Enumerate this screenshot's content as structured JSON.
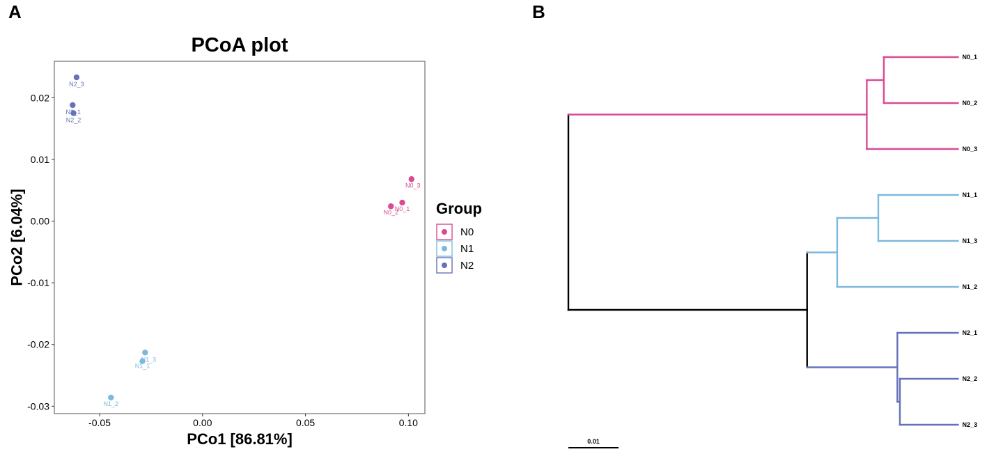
{
  "panels": {
    "a_letter": "A",
    "b_letter": "B"
  },
  "colors": {
    "N0": "#d94a94",
    "N1": "#7db8df",
    "N2": "#6572b8",
    "root": "#000000"
  },
  "chart_data": [
    {
      "type": "scatter",
      "title": "PCoA plot",
      "xlabel": "PCo1 [86.81%]",
      "ylabel": "PCo2 [6.04%]",
      "xlim": [
        -0.072,
        0.108
      ],
      "ylim": [
        -0.0312,
        0.0259
      ],
      "x_ticks": [
        -0.05,
        0.0,
        0.05,
        0.1
      ],
      "x_tick_labels": [
        "-0.05",
        "0.00",
        "0.05",
        "0.10"
      ],
      "y_ticks": [
        -0.03,
        -0.02,
        -0.01,
        0.0,
        0.01,
        0.02
      ],
      "y_tick_labels": [
        "-0.03",
        "-0.02",
        "-0.01",
        "0.00",
        "0.01",
        "0.02"
      ],
      "grid": false,
      "legend": {
        "title": "Group",
        "placement": "right",
        "entries": [
          "N0",
          "N1",
          "N2"
        ]
      },
      "series": [
        {
          "name": "N0",
          "points": [
            {
              "label": "N0_1",
              "x": 0.097,
              "y": 0.003
            },
            {
              "label": "N0_2",
              "x": 0.0915,
              "y": 0.0024
            },
            {
              "label": "N0_3",
              "x": 0.1015,
              "y": 0.0068
            }
          ]
        },
        {
          "name": "N1",
          "points": [
            {
              "label": "N1_1",
              "x": -0.0292,
              "y": -0.0227
            },
            {
              "label": "N1_2",
              "x": -0.0445,
              "y": -0.0286
            },
            {
              "label": "N1_3",
              "x": -0.0279,
              "y": -0.0213
            }
          ]
        },
        {
          "name": "N2",
          "points": [
            {
              "label": "N2_1",
              "x": -0.0631,
              "y": 0.0188
            },
            {
              "label": "N2_2",
              "x": -0.0627,
              "y": 0.0175
            },
            {
              "label": "N2_3",
              "x": -0.0612,
              "y": 0.0233
            }
          ]
        }
      ]
    },
    {
      "type": "dendrogram",
      "scale_bar": {
        "value": 0.01,
        "label": "0.01"
      },
      "leaves": [
        "N0_1",
        "N0_2",
        "N0_3",
        "N1_1",
        "N1_3",
        "N1_2",
        "N2_1",
        "N2_2",
        "N2_3"
      ],
      "leaf_groups": [
        "N0",
        "N0",
        "N0",
        "N1",
        "N1",
        "N1",
        "N2",
        "N2",
        "N2"
      ],
      "nodes": [
        {
          "id": "root",
          "height": 0,
          "children": [
            "n0_clade",
            "n12_clade"
          ]
        },
        {
          "id": "n0_clade",
          "height": 0.0595,
          "children": [
            "n0_sub",
            "N0_3"
          ]
        },
        {
          "id": "n0_sub",
          "height": 0.0629,
          "children": [
            "N0_1",
            "N0_2"
          ]
        },
        {
          "id": "n12_clade",
          "height": 0.0476,
          "children": [
            "n1_clade",
            "n2_clade"
          ]
        },
        {
          "id": "n1_clade",
          "height": 0.0536,
          "children": [
            "n1_sub",
            "N1_2"
          ]
        },
        {
          "id": "n1_sub",
          "height": 0.0618,
          "children": [
            "N1_1",
            "N1_3"
          ]
        },
        {
          "id": "n2_clade",
          "height": 0.0656,
          "children": [
            "N2_1",
            "n2_sub"
          ]
        },
        {
          "id": "n2_sub",
          "height": 0.0661,
          "children": [
            "N2_2",
            "N2_3"
          ]
        }
      ],
      "tip_height": 0.0777
    }
  ]
}
